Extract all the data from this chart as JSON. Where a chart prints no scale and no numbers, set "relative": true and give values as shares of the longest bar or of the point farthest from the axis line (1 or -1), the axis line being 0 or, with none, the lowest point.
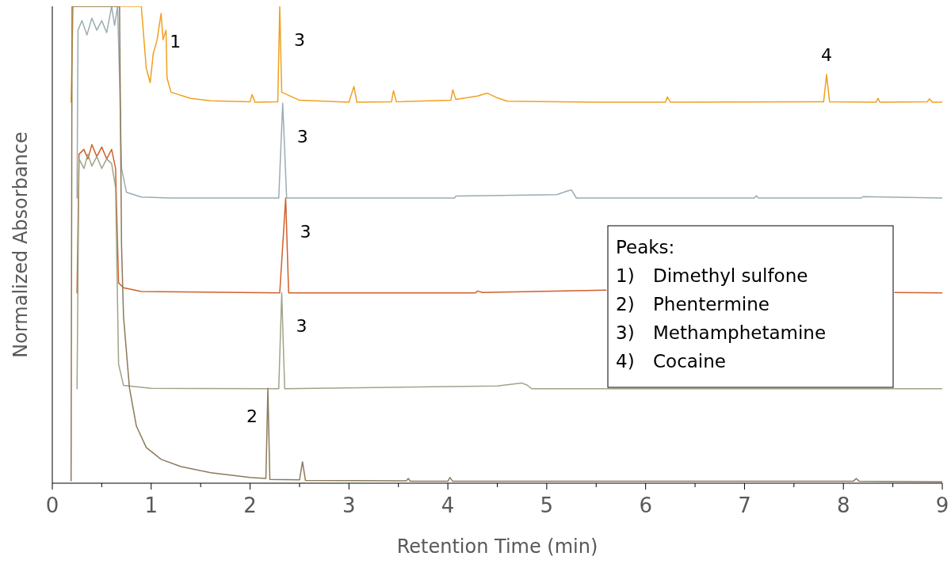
{
  "chart_data": {
    "type": "line",
    "relative": true,
    "xlabel": "Retention Time (min)",
    "ylabel": "Normalized Absorbance",
    "xlim": [
      0,
      9
    ],
    "xticks": [
      0,
      {
        "value": 0.5,
        "label": null
      },
      1,
      {
        "value": 1.5,
        "label": null
      },
      2,
      {
        "value": 2.5,
        "label": null
      },
      3,
      {
        "value": 3.5,
        "label": null
      },
      4,
      {
        "value": 4.5,
        "label": null
      },
      5,
      {
        "value": 5.5,
        "label": null
      },
      6,
      {
        "value": 6.5,
        "label": null
      },
      7,
      {
        "value": 7.5,
        "label": null
      },
      8,
      {
        "value": 8.5,
        "label": null
      },
      9
    ],
    "grid": false,
    "marker": "none",
    "line_style": "solid",
    "series": [
      {
        "color": "#f0a020",
        "x": [
          0.19,
          0.21,
          0.9,
          0.95,
          0.99,
          1.02,
          1.06,
          1.1,
          1.12,
          1.15,
          1.16,
          1.2,
          1.4,
          1.6,
          2.0,
          2.02,
          2.05,
          2.28,
          2.3,
          2.32,
          2.5,
          3.0,
          3.05,
          3.08,
          3.43,
          3.45,
          3.48,
          4.03,
          4.05,
          4.08,
          4.3,
          4.4,
          4.5,
          4.6,
          5.5,
          6.2,
          6.22,
          6.25,
          7.8,
          7.83,
          7.86,
          8.33,
          8.35,
          8.37,
          8.85,
          8.87,
          8.9,
          9
        ],
        "values": [
          0.799,
          1,
          1,
          0.87,
          0.84,
          0.9,
          0.93,
          0.985,
          0.93,
          0.95,
          0.85,
          0.82,
          0.807,
          0.802,
          0.8,
          0.815,
          0.799,
          0.8,
          1,
          0.82,
          0.803,
          0.799,
          0.832,
          0.799,
          0.8,
          0.823,
          0.8,
          0.803,
          0.825,
          0.805,
          0.812,
          0.818,
          0.808,
          0.801,
          0.799,
          0.799,
          0.81,
          0.799,
          0.8,
          0.857,
          0.8,
          0.799,
          0.807,
          0.799,
          0.8,
          0.806,
          0.799,
          0.799
        ]
      },
      {
        "color": "#9aacb4",
        "x": [
          0.25,
          0.26,
          0.3,
          0.35,
          0.4,
          0.45,
          0.5,
          0.55,
          0.6,
          0.63,
          0.66,
          0.68,
          0.7,
          0.75,
          0.9,
          1.2,
          2.29,
          2.33,
          2.37,
          4.07,
          4.08,
          5.1,
          5.2,
          5.25,
          5.3,
          6,
          7.1,
          7.12,
          7.14,
          8.18,
          8.2,
          9
        ],
        "values": [
          0.598,
          0.95,
          0.97,
          0.94,
          0.975,
          0.95,
          0.97,
          0.945,
          1,
          0.96,
          1,
          0.85,
          0.66,
          0.61,
          0.6,
          0.598,
          0.598,
          0.797,
          0.598,
          0.598,
          0.602,
          0.605,
          0.612,
          0.615,
          0.598,
          0.598,
          0.598,
          0.603,
          0.598,
          0.598,
          0.601,
          0.598
        ]
      },
      {
        "color": "#d0602a",
        "x": [
          0.25,
          0.27,
          0.32,
          0.36,
          0.4,
          0.45,
          0.5,
          0.55,
          0.6,
          0.64,
          0.67,
          0.72,
          0.9,
          2.3,
          2.36,
          2.39,
          4.28,
          4.3,
          4.35,
          5.6,
          5.62,
          8.5,
          8.52,
          9
        ],
        "values": [
          0.399,
          0.69,
          0.7,
          0.68,
          0.71,
          0.685,
          0.705,
          0.68,
          0.7,
          0.66,
          0.42,
          0.41,
          0.402,
          0.399,
          0.598,
          0.399,
          0.399,
          0.403,
          0.4,
          0.405,
          null,
          null,
          0.4,
          0.399
        ]
      },
      {
        "color": "#a0a488",
        "x": [
          0.25,
          0.27,
          0.32,
          0.36,
          0.4,
          0.45,
          0.5,
          0.55,
          0.6,
          0.64,
          0.67,
          0.72,
          1,
          2.29,
          2.32,
          2.35,
          4.5,
          4.75,
          4.8,
          4.85,
          9
        ],
        "values": [
          0.198,
          0.68,
          0.66,
          0.69,
          0.665,
          0.685,
          0.66,
          0.68,
          0.67,
          0.62,
          0.25,
          0.205,
          0.199,
          0.198,
          0.399,
          0.198,
          0.204,
          0.21,
          0.206,
          0.198,
          0.198
        ]
      },
      {
        "color": "#8b7a5a",
        "x": [
          0.19,
          0.2,
          0.68,
          0.7,
          0.72,
          0.78,
          0.85,
          0.95,
          1.1,
          1.3,
          1.6,
          2.0,
          2.16,
          2.18,
          2.2,
          2.5,
          2.53,
          2.56,
          3.58,
          3.6,
          3.62,
          4.0,
          4.02,
          4.05,
          8.1,
          8.13,
          8.16,
          9
        ],
        "values": [
          0.005,
          1,
          1,
          0.5,
          0.35,
          0.2,
          0.12,
          0.075,
          0.05,
          0.035,
          0.022,
          0.012,
          0.01,
          0.199,
          0.008,
          0.007,
          0.045,
          0.006,
          0.005,
          0.01,
          0.004,
          0.004,
          0.012,
          0.004,
          0.004,
          0.01,
          0.004,
          0.003
        ]
      }
    ],
    "annotations": [
      {
        "text": "1",
        "x": 1.1,
        "y": 0.985
      },
      {
        "text": "3",
        "x": 2.3,
        "y": 1
      },
      {
        "text": "4",
        "x": 7.83,
        "y": 0.857
      },
      {
        "text": "3",
        "x": 2.33,
        "y": 0.797
      },
      {
        "text": "3",
        "x": 2.36,
        "y": 0.598
      },
      {
        "text": "3",
        "x": 2.32,
        "y": 0.399
      },
      {
        "text": "2",
        "x": 2.18,
        "y": 0.199
      },
      "Peaks:",
      "1)\tDimethyl sulfone",
      "2)\tPhentermine",
      "3)\tMethamphetamine",
      "4)\tCocaine"
    ]
  }
}
